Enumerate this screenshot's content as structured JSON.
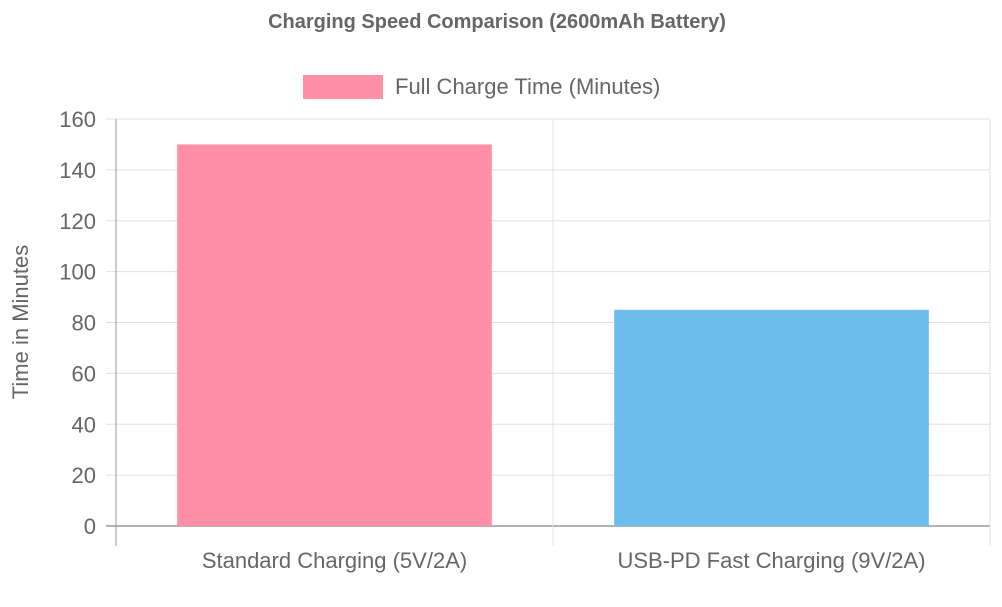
{
  "chart_data": {
    "type": "bar",
    "title": "Charging Speed Comparison (2600mAh Battery)",
    "xlabel": "",
    "ylabel": "Time in Minutes",
    "categories": [
      "Standard Charging (5V/2A)",
      "USB-PD Fast Charging (9V/2A)"
    ],
    "series": [
      {
        "name": "Full Charge Time (Minutes)",
        "values": [
          150,
          85
        ],
        "colors": [
          "#ff8fa6",
          "#6dbdec"
        ]
      }
    ],
    "ylim": [
      0,
      160
    ],
    "yticks": [
      0,
      20,
      40,
      60,
      80,
      100,
      120,
      140,
      160
    ],
    "grid": true,
    "legend_position": "top-center",
    "legend_color": "#ff8fa6"
  }
}
